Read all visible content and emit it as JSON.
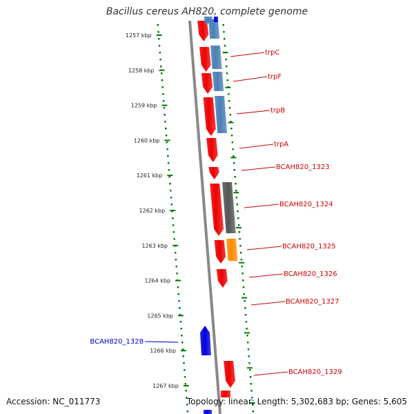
{
  "title": "Bacillus cereus AH820, complete genome",
  "accession": "Accession: NC_011773",
  "topology": "Topology: linear; Length: 5,302,683 bp; Genes: 5,605",
  "colors": {
    "forward_strand": "#ee0000",
    "reverse_strand": "#0000dd",
    "label_forward": "#cc0000",
    "label_reverse": "#0000cc",
    "tick": "#007a00",
    "backbone": "#888888"
  },
  "scale_ticks": [
    "1257 kbp",
    "1258 kbp",
    "1259 kbp",
    "1260 kbp",
    "1261 kbp",
    "1262 kbp",
    "1263 kbp",
    "1264 kbp",
    "1265 kbp",
    "1266 kbp",
    "1267 kbp"
  ],
  "genes": [
    {
      "label": "trpC",
      "strand": "forward",
      "feature_color": "#4a7fb5"
    },
    {
      "label": "trpF",
      "strand": "forward",
      "feature_color": "#4a7fb5"
    },
    {
      "label": "trpB",
      "strand": "forward",
      "feature_color": "#4a7fb5"
    },
    {
      "label": "trpA",
      "strand": "forward",
      "feature_color": "#4a7fb5"
    },
    {
      "label": "BCAH820_1323",
      "strand": "forward",
      "feature_color": ""
    },
    {
      "label": "BCAH820_1324",
      "strand": "forward",
      "feature_color": "#00e5ee"
    },
    {
      "label": "BCAH820_1325",
      "strand": "forward",
      "feature_color": "#555555"
    },
    {
      "label": "BCAH820_1326",
      "strand": "forward",
      "feature_color": "#ff8c00"
    },
    {
      "label": "BCAH820_1327",
      "strand": "forward",
      "feature_color": ""
    },
    {
      "label": "BCAH820_1328",
      "strand": "reverse",
      "feature_color": ""
    },
    {
      "label": "BCAH820_1329",
      "strand": "forward",
      "feature_color": ""
    }
  ]
}
